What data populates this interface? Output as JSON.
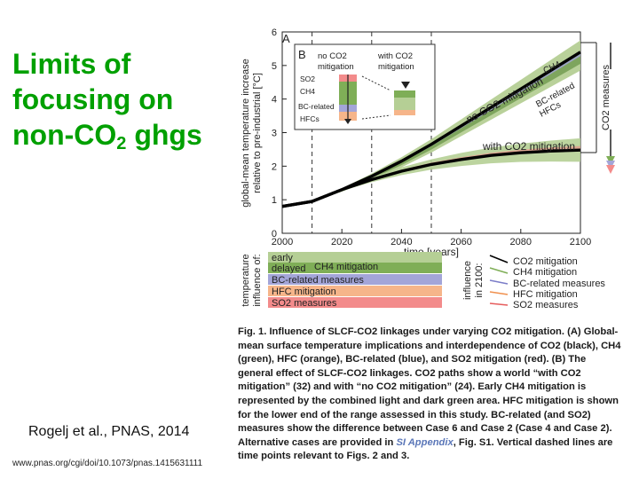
{
  "slide": {
    "title_main": "Limits of focusing on non-CO",
    "title_sub": "2",
    "title_end": " ghgs",
    "citation": "Rogelj et al., PNAS, 2014",
    "doi_url": "www.pnas.org/cgi/doi/10.1073/pnas.1415631111"
  },
  "colors": {
    "title": "#00a000",
    "no_co2_band_dark": "#6f9a4e",
    "no_co2_band_light": "#b5cf95",
    "with_co2_band": "#b5cf95",
    "ch4_early": "#b5cf95",
    "ch4_delayed": "#7fae57",
    "bc_related": "#a3a5d8",
    "hfc": "#f6b58a",
    "so2": "#f38b8b",
    "central_line": "#000000"
  },
  "figure": {
    "panel_a_label": "A",
    "panel_b_label": "B",
    "ylabel_line1": "global-mean temperature increase",
    "ylabel_line2": "relative to pre-industrial [°C]",
    "xlabel": "time [years]",
    "yticks": [
      "0",
      "1",
      "2",
      "3",
      "4",
      "5",
      "6"
    ],
    "xticks": [
      "2000",
      "2020",
      "2040",
      "2060",
      "2080",
      "2100"
    ],
    "label_no_co2": "no CO2 mitigation",
    "label_with_co2": "with CO2 mitigation",
    "label_ch4": "CH4",
    "label_bc_related": "BC-related",
    "label_hfcs": "HFCs",
    "right_axis_label": "CO2 measures",
    "inset": {
      "col1_line1": "no CO2",
      "col1_line2": "mitigation",
      "col2_line1": "with CO2",
      "col2_line2": "mitigation",
      "so2": "SO2",
      "ch4": "CH4",
      "bc": "BC-related",
      "hfcs": "HFCs"
    },
    "legend_left_ylabel_line1": "temperature",
    "legend_left_ylabel_line2": "influence of:",
    "legend_left": [
      "early",
      "delayed",
      "CH4 mitigation",
      "BC-related measures",
      "HFC mitigation",
      "SO2 measures"
    ],
    "legend_right_ylabel_line1": "influence",
    "legend_right_ylabel_line2": "in 2100:",
    "legend_right": [
      "CO2 mitigation",
      "CH4 mitigation",
      "BC-related measures",
      "HFC mitigation",
      "SO2 measures"
    ]
  },
  "chart_data": {
    "type": "line",
    "x_range": [
      2000,
      2100
    ],
    "y_range": [
      0,
      6
    ],
    "vertical_dashed_lines_at": [
      2010,
      2030,
      2050
    ],
    "series": [
      {
        "name": "no CO2 mitigation",
        "x": [
          2000,
          2010,
          2020,
          2030,
          2040,
          2050,
          2060,
          2070,
          2080,
          2090,
          2100
        ],
        "y": [
          0.8,
          0.95,
          1.3,
          1.7,
          2.15,
          2.65,
          3.2,
          3.75,
          4.3,
          4.85,
          5.4
        ]
      },
      {
        "name": "with CO2 mitigation",
        "x": [
          2000,
          2010,
          2020,
          2030,
          2040,
          2050,
          2060,
          2070,
          2080,
          2090,
          2100
        ],
        "y": [
          0.8,
          0.95,
          1.3,
          1.6,
          1.85,
          2.05,
          2.2,
          2.32,
          2.4,
          2.45,
          2.48
        ]
      }
    ]
  },
  "caption": {
    "fig_label": "Fig. 1.",
    "text": "Influence of SLCF-CO2 linkages under varying CO2 mitigation. (A) Global-mean surface temperature implications and interdependence of CO2 (black), CH4 (green), HFC (orange), BC-related (blue), and SO2 mitigation (red). (B) The general effect of SLCF-CO2 linkages. CO2 paths show a world “with CO2 mitigation” (32) and with “no CO2 mitigation” (24). Early CH4 mitigation is represented by the combined light and dark green area. HFC mitigation is shown for the lower end of the range assessed in this study. BC-related (and SO2) measures show the difference between Case 6 and Case 2 (Case 4 and Case 2). Alternative cases are provided in ",
    "link_text": "SI Appendix",
    "text_end": ", Fig. S1. Vertical dashed lines are time points relevant to Figs. 2 and 3."
  }
}
